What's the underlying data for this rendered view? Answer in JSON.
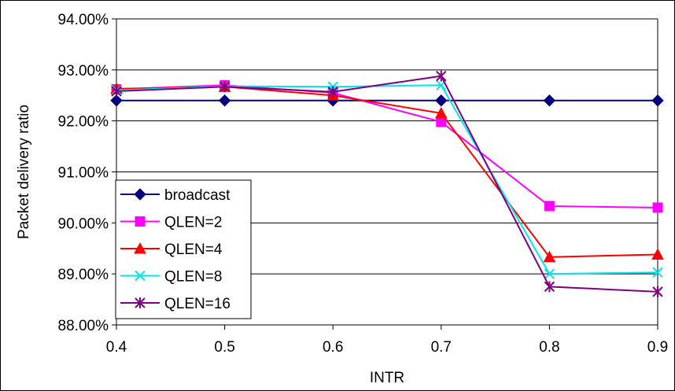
{
  "chart_data": {
    "type": "line",
    "xlabel": "INTR",
    "ylabel": "Packet delivery ratio",
    "x": [
      0.4,
      0.5,
      0.6,
      0.7,
      0.8,
      0.9
    ],
    "x_tick_labels": [
      "0.4",
      "0.5",
      "0.6",
      "0.7",
      "0.8",
      "0.9"
    ],
    "xlim": [
      0.4,
      0.9
    ],
    "ylim": [
      88.0,
      94.0
    ],
    "y_ticks": [
      88,
      89,
      90,
      91,
      92,
      93,
      94
    ],
    "y_tick_labels": [
      "88.00%",
      "89.00%",
      "90.00%",
      "91.00%",
      "92.00%",
      "93.00%",
      "94.00%"
    ],
    "grid": "horizontal",
    "legend_position": "lower-left",
    "series": [
      {
        "name": "broadcast",
        "marker": "diamond",
        "color": "#000080",
        "values": [
          92.4,
          92.4,
          92.4,
          92.4,
          92.4,
          92.4
        ]
      },
      {
        "name": "QLEN=2",
        "marker": "square",
        "color": "#FF00FF",
        "values": [
          92.62,
          92.7,
          92.55,
          91.98,
          90.33,
          90.3
        ]
      },
      {
        "name": "QLEN=4",
        "marker": "triangle",
        "color": "#FF0000",
        "values": [
          92.63,
          92.67,
          92.5,
          92.15,
          89.33,
          89.38
        ]
      },
      {
        "name": "QLEN=8",
        "marker": "x",
        "color": "#00E5EE",
        "values": [
          92.6,
          92.68,
          92.67,
          92.7,
          89.0,
          89.03
        ]
      },
      {
        "name": "QLEN=16",
        "marker": "asterisk",
        "color": "#800080",
        "values": [
          92.58,
          92.67,
          92.57,
          92.88,
          88.75,
          88.65
        ]
      }
    ]
  }
}
